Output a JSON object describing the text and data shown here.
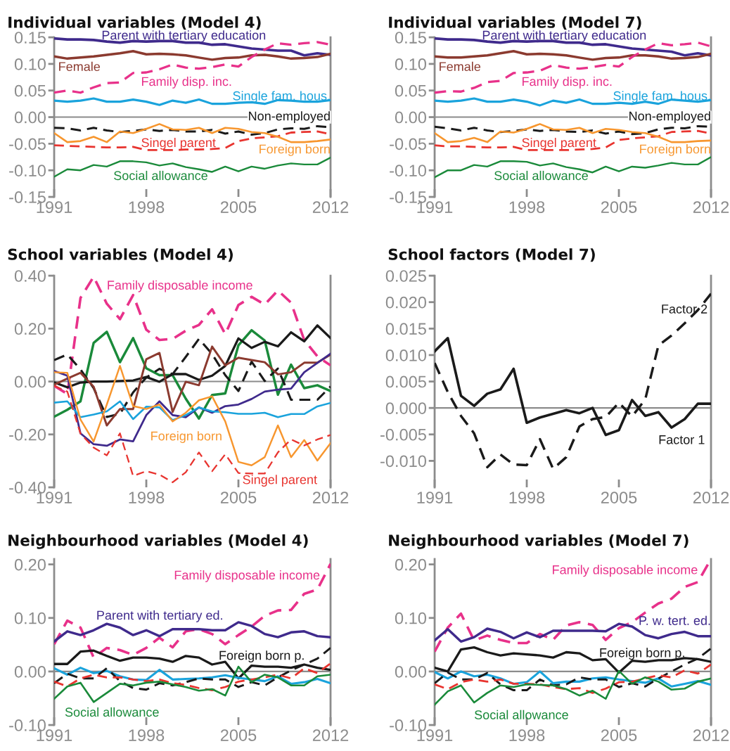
{
  "chart_data": [
    {
      "type": "line",
      "title": "Individual variables (Model 4)",
      "x": [
        1991,
        1992,
        1993,
        1994,
        1995,
        1996,
        1997,
        1998,
        1999,
        2000,
        2001,
        2002,
        2003,
        2004,
        2005,
        2006,
        2007,
        2008,
        2009,
        2010,
        2011,
        2012
      ],
      "xlim": [
        1991,
        2012
      ],
      "xticks": [
        1991,
        1998,
        2005,
        2012
      ],
      "ylim": [
        -0.15,
        0.15
      ],
      "yticks": [
        {
          "value": 0.15,
          "label": "0.15"
        },
        {
          "value": 0.1,
          "label": "0.10"
        },
        {
          "value": 0.05,
          "label": "0.05"
        },
        {
          "value": 0,
          "label": "0.00"
        },
        {
          "value": -0.05,
          "label": "-0.05"
        },
        {
          "value": -0.1,
          "label": "-0.10"
        },
        {
          "value": -0.15,
          "label": "-0.15"
        }
      ],
      "ref_lines": [
        {
          "axis": "y",
          "value": 0,
          "color": "#8c8c8c"
        }
      ],
      "series": [
        {
          "name": "Parent with tertiary education",
          "color": "#3f2a8c",
          "line_style": "solid",
          "values": [
            0.148,
            0.146,
            0.146,
            0.145,
            0.142,
            0.14,
            0.143,
            0.142,
            0.143,
            0.143,
            0.14,
            0.14,
            0.136,
            0.137,
            0.133,
            0.129,
            0.127,
            0.125,
            0.125,
            0.116,
            0.12,
            0.117
          ]
        },
        {
          "name": "Female",
          "color": "#8b3a2f",
          "line_style": "solid",
          "values": [
            0.114,
            0.11,
            0.112,
            0.114,
            0.117,
            0.12,
            0.124,
            0.118,
            0.119,
            0.118,
            0.116,
            0.112,
            0.108,
            0.111,
            0.112,
            0.116,
            0.117,
            0.114,
            0.11,
            0.111,
            0.113,
            0.119
          ]
        },
        {
          "name": "Family disp. inc.",
          "color": "#e8318a",
          "line_style": "dashed",
          "values": [
            0.046,
            0.05,
            0.046,
            0.056,
            0.064,
            0.065,
            0.083,
            0.084,
            0.09,
            0.099,
            0.093,
            0.091,
            0.094,
            0.099,
            0.095,
            0.113,
            0.127,
            0.139,
            0.136,
            0.139,
            0.141,
            0.136
          ]
        },
        {
          "name": "Single fam. hous.",
          "color": "#1aa3dc",
          "line_style": "solid",
          "values": [
            0.031,
            0.029,
            0.031,
            0.035,
            0.029,
            0.029,
            0.033,
            0.029,
            0.023,
            0.031,
            0.027,
            0.033,
            0.025,
            0.025,
            0.027,
            0.028,
            0.025,
            0.032,
            0.031,
            0.029,
            0.029,
            0.032
          ]
        },
        {
          "name": "Non-employed",
          "color": "#1a1a1a",
          "line_style": "dashed",
          "values": [
            -0.02,
            -0.021,
            -0.025,
            -0.02,
            -0.025,
            -0.028,
            -0.026,
            -0.023,
            -0.026,
            -0.024,
            -0.027,
            -0.027,
            -0.024,
            -0.031,
            -0.027,
            -0.033,
            -0.03,
            -0.023,
            -0.021,
            -0.022,
            -0.017,
            -0.019
          ]
        },
        {
          "name": "Singel parent",
          "color": "#e8342f",
          "line_style": "dashed",
          "values": [
            -0.053,
            -0.054,
            -0.055,
            -0.056,
            -0.057,
            -0.057,
            -0.056,
            -0.062,
            -0.062,
            -0.062,
            -0.061,
            -0.061,
            -0.06,
            -0.058,
            -0.045,
            -0.04,
            -0.038,
            -0.036,
            -0.029,
            -0.028,
            -0.027,
            -0.032
          ]
        },
        {
          "name": "Foreign born",
          "color": "#f7962e",
          "line_style": "solid",
          "values": [
            -0.03,
            -0.047,
            -0.045,
            -0.037,
            -0.047,
            -0.027,
            -0.03,
            -0.022,
            -0.013,
            -0.023,
            -0.024,
            -0.02,
            -0.03,
            -0.02,
            -0.022,
            -0.028,
            -0.03,
            -0.037,
            -0.047,
            -0.047,
            -0.045,
            -0.042
          ]
        },
        {
          "name": "Social allowance",
          "color": "#1a8a3a",
          "line_style": "solid",
          "values": [
            -0.112,
            -0.098,
            -0.1,
            -0.09,
            -0.093,
            -0.083,
            -0.083,
            -0.085,
            -0.091,
            -0.087,
            -0.094,
            -0.098,
            -0.103,
            -0.093,
            -0.102,
            -0.093,
            -0.097,
            -0.091,
            -0.087,
            -0.089,
            -0.089,
            -0.076
          ]
        }
      ]
    },
    {
      "type": "line",
      "title": "Individual variables (Model 7)",
      "x": [
        1991,
        1992,
        1993,
        1994,
        1995,
        1996,
        1997,
        1998,
        1999,
        2000,
        2001,
        2002,
        2003,
        2004,
        2005,
        2006,
        2007,
        2008,
        2009,
        2010,
        2011,
        2012
      ],
      "xlim": [
        1991,
        2012
      ],
      "xticks": [
        1991,
        1998,
        2005,
        2012
      ],
      "ylim": [
        -0.15,
        0.15
      ],
      "yticks": [
        {
          "value": 0.15,
          "label": "0.15"
        },
        {
          "value": 0.1,
          "label": "0.10"
        },
        {
          "value": 0.05,
          "label": "0.05"
        },
        {
          "value": 0,
          "label": "0.00"
        },
        {
          "value": -0.05,
          "label": "-0.05"
        },
        {
          "value": -0.1,
          "label": "-0.10"
        },
        {
          "value": -0.15,
          "label": "-0.15"
        }
      ],
      "ref_lines": [
        {
          "axis": "y",
          "value": 0,
          "color": "#8c8c8c"
        }
      ],
      "series": [
        {
          "name": "Parent with tertiary education",
          "color": "#3f2a8c",
          "line_style": "solid",
          "values": [
            0.148,
            0.146,
            0.146,
            0.145,
            0.142,
            0.14,
            0.143,
            0.142,
            0.143,
            0.143,
            0.14,
            0.14,
            0.136,
            0.137,
            0.133,
            0.129,
            0.127,
            0.125,
            0.123,
            0.116,
            0.12,
            0.116
          ]
        },
        {
          "name": "Female",
          "color": "#8b3a2f",
          "line_style": "solid",
          "values": [
            0.114,
            0.112,
            0.112,
            0.114,
            0.116,
            0.12,
            0.124,
            0.118,
            0.119,
            0.118,
            0.116,
            0.112,
            0.108,
            0.111,
            0.112,
            0.116,
            0.116,
            0.114,
            0.11,
            0.111,
            0.113,
            0.119
          ]
        },
        {
          "name": "Family disp. inc.",
          "color": "#e8318a",
          "line_style": "dashed",
          "values": [
            0.046,
            0.049,
            0.048,
            0.055,
            0.066,
            0.068,
            0.083,
            0.084,
            0.087,
            0.098,
            0.093,
            0.091,
            0.094,
            0.098,
            0.095,
            0.113,
            0.127,
            0.139,
            0.135,
            0.137,
            0.14,
            0.133
          ]
        },
        {
          "name": "Single fam. hous.",
          "color": "#1aa3dc",
          "line_style": "solid",
          "values": [
            0.031,
            0.029,
            0.031,
            0.035,
            0.029,
            0.029,
            0.033,
            0.029,
            0.022,
            0.031,
            0.027,
            0.033,
            0.025,
            0.025,
            0.027,
            0.025,
            0.029,
            0.025,
            0.033,
            0.031,
            0.029,
            0.032
          ]
        },
        {
          "name": "Non-employed",
          "color": "#1a1a1a",
          "line_style": "dashed",
          "values": [
            -0.018,
            -0.021,
            -0.025,
            -0.02,
            -0.025,
            -0.028,
            -0.026,
            -0.023,
            -0.026,
            -0.024,
            -0.027,
            -0.028,
            -0.025,
            -0.031,
            -0.027,
            -0.032,
            -0.03,
            -0.023,
            -0.02,
            -0.021,
            -0.017,
            -0.018
          ]
        },
        {
          "name": "Singel parent",
          "color": "#e8342f",
          "line_style": "dashed",
          "values": [
            -0.053,
            -0.055,
            -0.055,
            -0.056,
            -0.057,
            -0.057,
            -0.056,
            -0.062,
            -0.062,
            -0.062,
            -0.062,
            -0.061,
            -0.06,
            -0.057,
            -0.043,
            -0.04,
            -0.038,
            -0.036,
            -0.028,
            -0.027,
            -0.026,
            -0.031
          ]
        },
        {
          "name": "Foreign born",
          "color": "#f7962e",
          "line_style": "solid",
          "values": [
            -0.03,
            -0.047,
            -0.045,
            -0.039,
            -0.047,
            -0.027,
            -0.029,
            -0.022,
            -0.013,
            -0.023,
            -0.024,
            -0.02,
            -0.03,
            -0.022,
            -0.024,
            -0.028,
            -0.03,
            -0.037,
            -0.047,
            -0.047,
            -0.045,
            -0.044
          ]
        },
        {
          "name": "Social allowance",
          "color": "#1a8a3a",
          "line_style": "solid",
          "values": [
            -0.113,
            -0.1,
            -0.1,
            -0.09,
            -0.093,
            -0.083,
            -0.083,
            -0.084,
            -0.091,
            -0.087,
            -0.094,
            -0.098,
            -0.104,
            -0.093,
            -0.102,
            -0.093,
            -0.095,
            -0.091,
            -0.086,
            -0.089,
            -0.089,
            -0.075
          ]
        }
      ]
    },
    {
      "type": "line",
      "title": "School variables (Model 4)",
      "x": [
        1991,
        1992,
        1993,
        1994,
        1995,
        1996,
        1997,
        1998,
        1999,
        2000,
        2001,
        2002,
        2003,
        2004,
        2005,
        2006,
        2007,
        2008,
        2009,
        2010,
        2011,
        2012
      ],
      "xlim": [
        1991,
        2012
      ],
      "xticks": [
        1991,
        1998,
        2005,
        2012
      ],
      "ylim": [
        -0.4,
        0.4
      ],
      "yticks": [
        {
          "value": 0.4,
          "label": "0.40"
        },
        {
          "value": 0.2,
          "label": "0.20"
        },
        {
          "value": 0,
          "label": "0.00"
        },
        {
          "value": -0.2,
          "label": "-0.20"
        },
        {
          "value": -0.4,
          "label": "-0.40"
        }
      ],
      "ref_lines": [
        {
          "axis": "y",
          "value": 0,
          "color": "#8c8c8c"
        }
      ],
      "series": [
        {
          "name": "Family disposable income",
          "color": "#e8318a",
          "line_style": "dashed",
          "values": [
            -0.016,
            -0.047,
            0.316,
            0.396,
            0.294,
            0.236,
            0.327,
            0.196,
            0.157,
            0.161,
            0.192,
            0.214,
            0.273,
            0.179,
            0.289,
            0.32,
            0.291,
            0.344,
            0.298,
            0.157,
            0.095,
            0.061
          ]
        },
        {
          "color": "#1a8a3a",
          "line_style": "solid",
          "values": [
            -0.133,
            -0.107,
            -0.075,
            0.146,
            0.188,
            0.073,
            0.164,
            0.05,
            0.024,
            0.024,
            -0.065,
            -0.14,
            -0.051,
            -0.045,
            0.137,
            0.194,
            0.155,
            -0.05,
            0.064,
            -0.025,
            -0.014,
            -0.036
          ]
        },
        {
          "color": "#1a1a1a",
          "line_style": "solid",
          "values": [
            -0.003,
            -0.022,
            -0.004,
            0.0,
            0.0,
            0.002,
            0.004,
            0.017,
            -0.001,
            0.028,
            0.028,
            0.006,
            0.022,
            0.059,
            0.163,
            0.127,
            0.15,
            0.133,
            0.186,
            0.152,
            0.212,
            0.164
          ]
        },
        {
          "color": "#1a1a1a",
          "line_style": "dashed",
          "values": [
            0.081,
            0.102,
            0.046,
            -0.025,
            -0.134,
            -0.122,
            -0.041,
            0.015,
            0.048,
            0.028,
            0.093,
            0.161,
            0.104,
            0.024,
            -0.036,
            0.075,
            0.002,
            0.049,
            -0.069,
            -0.069,
            -0.069,
            -0.019
          ]
        },
        {
          "color": "#8b3a2f",
          "line_style": "solid",
          "values": [
            -0.012,
            0.011,
            0.033,
            -0.02,
            -0.166,
            -0.104,
            -0.104,
            0.084,
            0.108,
            -0.115,
            -0.001,
            -0.014,
            0.132,
            0.061,
            0.09,
            0.081,
            0.073,
            0.027,
            0.035,
            0.071,
            0.071,
            0.102
          ]
        },
        {
          "color": "#3f2a8c",
          "line_style": "solid",
          "values": [
            0.04,
            0.022,
            -0.196,
            -0.237,
            -0.243,
            -0.219,
            -0.226,
            -0.127,
            -0.075,
            -0.127,
            -0.135,
            -0.098,
            -0.118,
            -0.093,
            -0.087,
            -0.066,
            -0.038,
            -0.031,
            -0.027,
            0.035,
            0.07,
            0.105
          ]
        },
        {
          "color": "#1aa3dc",
          "line_style": "solid",
          "values": [
            -0.08,
            -0.075,
            -0.135,
            -0.125,
            -0.113,
            -0.075,
            -0.142,
            -0.095,
            -0.098,
            -0.146,
            -0.127,
            -0.098,
            -0.113,
            -0.116,
            -0.122,
            -0.122,
            -0.118,
            -0.135,
            -0.123,
            -0.123,
            -0.094,
            -0.081
          ]
        },
        {
          "name": "Foreign born",
          "color": "#f7962e",
          "line_style": "solid",
          "values": [
            0.035,
            0.033,
            -0.144,
            -0.227,
            -0.087,
            0.059,
            -0.093,
            -0.104,
            -0.087,
            -0.151,
            -0.118,
            -0.071,
            -0.056,
            -0.151,
            -0.304,
            -0.317,
            -0.286,
            -0.166,
            -0.286,
            -0.221,
            -0.299,
            -0.233
          ]
        },
        {
          "name": "Singel parent",
          "color": "#e8342f",
          "line_style": "dashed",
          "values": [
            -0.016,
            -0.038,
            -0.197,
            -0.25,
            -0.279,
            -0.196,
            -0.357,
            -0.339,
            -0.352,
            -0.381,
            -0.343,
            -0.268,
            -0.339,
            -0.275,
            -0.346,
            -0.348,
            -0.348,
            -0.268,
            -0.219,
            -0.242,
            -0.219,
            -0.202
          ]
        }
      ]
    },
    {
      "type": "line",
      "title": "School factors (Model 7)",
      "x": [
        1991,
        1992,
        1993,
        1994,
        1995,
        1996,
        1997,
        1998,
        1999,
        2000,
        2001,
        2002,
        2003,
        2004,
        2005,
        2006,
        2007,
        2008,
        2009,
        2010,
        2011,
        2012
      ],
      "xlim": [
        1991,
        2012
      ],
      "xticks": [
        1991,
        1998,
        2005,
        2012
      ],
      "ylim": [
        -0.015,
        0.025
      ],
      "yticks": [
        {
          "value": 0.025,
          "label": "0.025"
        },
        {
          "value": 0.02,
          "label": "0.020"
        },
        {
          "value": 0.015,
          "label": "0.015"
        },
        {
          "value": 0.01,
          "label": "0.010"
        },
        {
          "value": 0.005,
          "label": "0.005"
        },
        {
          "value": 0,
          "label": "0.000"
        },
        {
          "value": -0.005,
          "label": "-0.005"
        },
        {
          "value": -0.01,
          "label": "-0.010"
        }
      ],
      "ref_lines": [
        {
          "axis": "y",
          "value": 0,
          "color": "#8c8c8c"
        }
      ],
      "series": [
        {
          "name": "Factor 1",
          "color": "#1a1a1a",
          "line_style": "solid",
          "values": [
            0.0107,
            0.0132,
            0.0023,
            0.0004,
            0.0027,
            0.0035,
            0.0074,
            -0.0028,
            -0.0018,
            -0.0011,
            -0.0004,
            -0.001,
            0.0,
            -0.0051,
            -0.0042,
            0.0015,
            -0.0015,
            -0.0008,
            -0.0037,
            -0.0021,
            0.0008,
            0.0008
          ]
        },
        {
          "name": "Factor 2",
          "color": "#1a1a1a",
          "line_style": "dashed",
          "values": [
            0.0085,
            0.003,
            -0.0015,
            -0.0048,
            -0.0112,
            -0.0088,
            -0.0107,
            -0.0108,
            -0.0059,
            -0.0115,
            -0.0093,
            -0.0035,
            -0.0021,
            -0.0017,
            0.001,
            -0.0016,
            0.0016,
            0.0118,
            0.0137,
            0.016,
            0.0185,
            0.0216
          ]
        }
      ]
    },
    {
      "type": "line",
      "title": "Neighbourhood variables (Model 4)",
      "x": [
        1991,
        1992,
        1993,
        1994,
        1995,
        1996,
        1997,
        1998,
        1999,
        2000,
        2001,
        2002,
        2003,
        2004,
        2005,
        2006,
        2007,
        2008,
        2009,
        2010,
        2011,
        2012
      ],
      "xlim": [
        1991,
        2012
      ],
      "xticks": [
        1991,
        1998,
        2005,
        2012
      ],
      "ylim": [
        -0.1,
        0.21
      ],
      "yticks": [
        {
          "value": 0.2,
          "label": "0.20"
        },
        {
          "value": 0.1,
          "label": "0.10"
        },
        {
          "value": 0,
          "label": "0.00"
        },
        {
          "value": -0.1,
          "label": "-0.10"
        }
      ],
      "ref_lines": [
        {
          "axis": "y",
          "value": 0,
          "color": "#8c8c8c"
        }
      ],
      "series": [
        {
          "name": "Family disposable income",
          "color": "#e8318a",
          "line_style": "dashed",
          "values": [
            0.051,
            0.095,
            0.082,
            0.026,
            0.044,
            0.04,
            0.031,
            0.044,
            0.063,
            0.045,
            0.075,
            0.079,
            0.07,
            0.051,
            0.068,
            0.084,
            0.104,
            0.114,
            0.115,
            0.145,
            0.153,
            0.201
          ]
        },
        {
          "name": "Parent with tertiary ed.",
          "color": "#3f2a8c",
          "line_style": "solid",
          "values": [
            0.056,
            0.075,
            0.068,
            0.077,
            0.089,
            0.082,
            0.068,
            0.077,
            0.066,
            0.079,
            0.079,
            0.079,
            0.077,
            0.077,
            0.092,
            0.085,
            0.07,
            0.064,
            0.073,
            0.075,
            0.066,
            0.064
          ]
        },
        {
          "name": "Foreign born p.",
          "color": "#1a1a1a",
          "line_style": "solid",
          "values": [
            0.014,
            0.014,
            0.037,
            0.039,
            0.029,
            0.02,
            0.026,
            0.026,
            0.024,
            0.018,
            0.029,
            0.026,
            0.013,
            0.018,
            -0.013,
            0.011,
            0.009,
            0.009,
            0.007,
            0.013,
            0.007,
            0.003
          ]
        },
        {
          "color": "#1aa3dc",
          "line_style": "solid",
          "values": [
            0.006,
            -0.006,
            0.007,
            -0.003,
            0.001,
            -0.009,
            -0.015,
            -0.016,
            0.003,
            -0.015,
            -0.014,
            -0.013,
            -0.011,
            -0.007,
            -0.012,
            -0.015,
            -0.018,
            -0.009,
            -0.023,
            -0.02,
            -0.014,
            -0.022
          ]
        },
        {
          "color": "#1a1a1a",
          "line_style": "dashed",
          "values": [
            -0.022,
            -0.004,
            -0.013,
            -0.013,
            0.006,
            -0.018,
            -0.031,
            -0.034,
            -0.022,
            -0.026,
            -0.02,
            -0.013,
            -0.015,
            -0.015,
            -0.029,
            -0.02,
            -0.026,
            -0.011,
            0.002,
            0.013,
            0.024,
            0.044
          ]
        },
        {
          "color": "#e8342f",
          "line_style": "dashed",
          "values": [
            -0.019,
            -0.028,
            -0.013,
            -0.006,
            -0.011,
            -0.011,
            -0.015,
            -0.018,
            -0.015,
            -0.022,
            -0.025,
            -0.031,
            -0.035,
            -0.029,
            -0.019,
            -0.015,
            -0.011,
            -0.006,
            -0.013,
            0.006,
            -0.003,
            0.015
          ]
        },
        {
          "name": "Social allowance",
          "color": "#1a8a3a",
          "line_style": "solid",
          "values": [
            -0.051,
            -0.028,
            -0.021,
            -0.057,
            -0.04,
            -0.023,
            -0.026,
            -0.021,
            -0.019,
            -0.024,
            -0.029,
            -0.036,
            -0.033,
            -0.045,
            0.009,
            -0.02,
            -0.006,
            -0.011,
            -0.026,
            -0.026,
            -0.009,
            -0.006
          ]
        }
      ]
    },
    {
      "type": "line",
      "title": "Neighbourhood variables (Model 7)",
      "x": [
        1991,
        1992,
        1993,
        1994,
        1995,
        1996,
        1997,
        1998,
        1999,
        2000,
        2001,
        2002,
        2003,
        2004,
        2005,
        2006,
        2007,
        2008,
        2009,
        2010,
        2011,
        2012
      ],
      "xlim": [
        1991,
        2012
      ],
      "xticks": [
        1991,
        1998,
        2005,
        2012
      ],
      "ylim": [
        -0.1,
        0.21
      ],
      "yticks": [
        {
          "value": 0.2,
          "label": "0.20"
        },
        {
          "value": 0.1,
          "label": "0.10"
        },
        {
          "value": 0,
          "label": "0.00"
        },
        {
          "value": -0.1,
          "label": "-0.10"
        }
      ],
      "ref_lines": [
        {
          "axis": "y",
          "value": 0,
          "color": "#8c8c8c"
        }
      ],
      "series": [
        {
          "name": "Family disposable income",
          "color": "#e8318a",
          "line_style": "dashed",
          "values": [
            0.037,
            0.082,
            0.108,
            0.058,
            0.067,
            0.059,
            0.053,
            0.053,
            0.07,
            0.059,
            0.086,
            0.092,
            0.087,
            0.059,
            0.081,
            0.092,
            0.11,
            0.127,
            0.136,
            0.158,
            0.167,
            0.21
          ]
        },
        {
          "name": "P. w. tert. ed.",
          "color": "#3f2a8c",
          "line_style": "solid",
          "values": [
            0.058,
            0.079,
            0.056,
            0.064,
            0.08,
            0.074,
            0.062,
            0.073,
            0.064,
            0.076,
            0.076,
            0.076,
            0.076,
            0.075,
            0.089,
            0.084,
            0.068,
            0.062,
            0.07,
            0.074,
            0.066,
            0.066
          ]
        },
        {
          "name": "Foreign born p.",
          "color": "#1a1a1a",
          "line_style": "solid",
          "values": [
            0.007,
            0.0,
            0.041,
            0.045,
            0.036,
            0.03,
            0.034,
            0.032,
            0.03,
            0.026,
            0.036,
            0.034,
            0.021,
            0.023,
            -0.002,
            0.02,
            0.018,
            0.021,
            0.021,
            0.025,
            0.023,
            0.018
          ]
        },
        {
          "color": "#1aa3dc",
          "line_style": "solid",
          "values": [
            -0.001,
            -0.013,
            0.0,
            -0.009,
            -0.006,
            -0.013,
            -0.023,
            -0.02,
            0.0,
            -0.022,
            -0.019,
            -0.019,
            -0.013,
            -0.011,
            -0.015,
            -0.018,
            -0.021,
            -0.013,
            -0.028,
            -0.023,
            -0.018,
            -0.025
          ]
        },
        {
          "color": "#1a1a1a",
          "line_style": "dashed",
          "values": [
            -0.022,
            -0.002,
            -0.015,
            -0.015,
            -0.003,
            -0.024,
            -0.035,
            -0.035,
            -0.015,
            -0.026,
            -0.024,
            -0.011,
            -0.015,
            -0.015,
            -0.029,
            -0.022,
            -0.028,
            -0.013,
            0.0,
            0.013,
            0.024,
            0.043
          ]
        },
        {
          "color": "#e8342f",
          "line_style": "dashed",
          "values": [
            -0.024,
            -0.033,
            -0.02,
            -0.015,
            -0.019,
            -0.015,
            -0.023,
            -0.023,
            -0.024,
            -0.029,
            -0.033,
            -0.031,
            -0.04,
            -0.032,
            -0.02,
            -0.019,
            -0.013,
            -0.007,
            -0.011,
            0.002,
            -0.004,
            0.013
          ]
        },
        {
          "name": "Social allowance",
          "color": "#1a8a3a",
          "line_style": "solid",
          "values": [
            -0.062,
            -0.037,
            -0.026,
            -0.058,
            -0.04,
            -0.026,
            -0.029,
            -0.024,
            -0.025,
            -0.026,
            -0.033,
            -0.045,
            -0.036,
            -0.051,
            0.001,
            -0.023,
            -0.011,
            -0.019,
            -0.034,
            -0.032,
            -0.019,
            -0.013
          ]
        }
      ]
    }
  ]
}
